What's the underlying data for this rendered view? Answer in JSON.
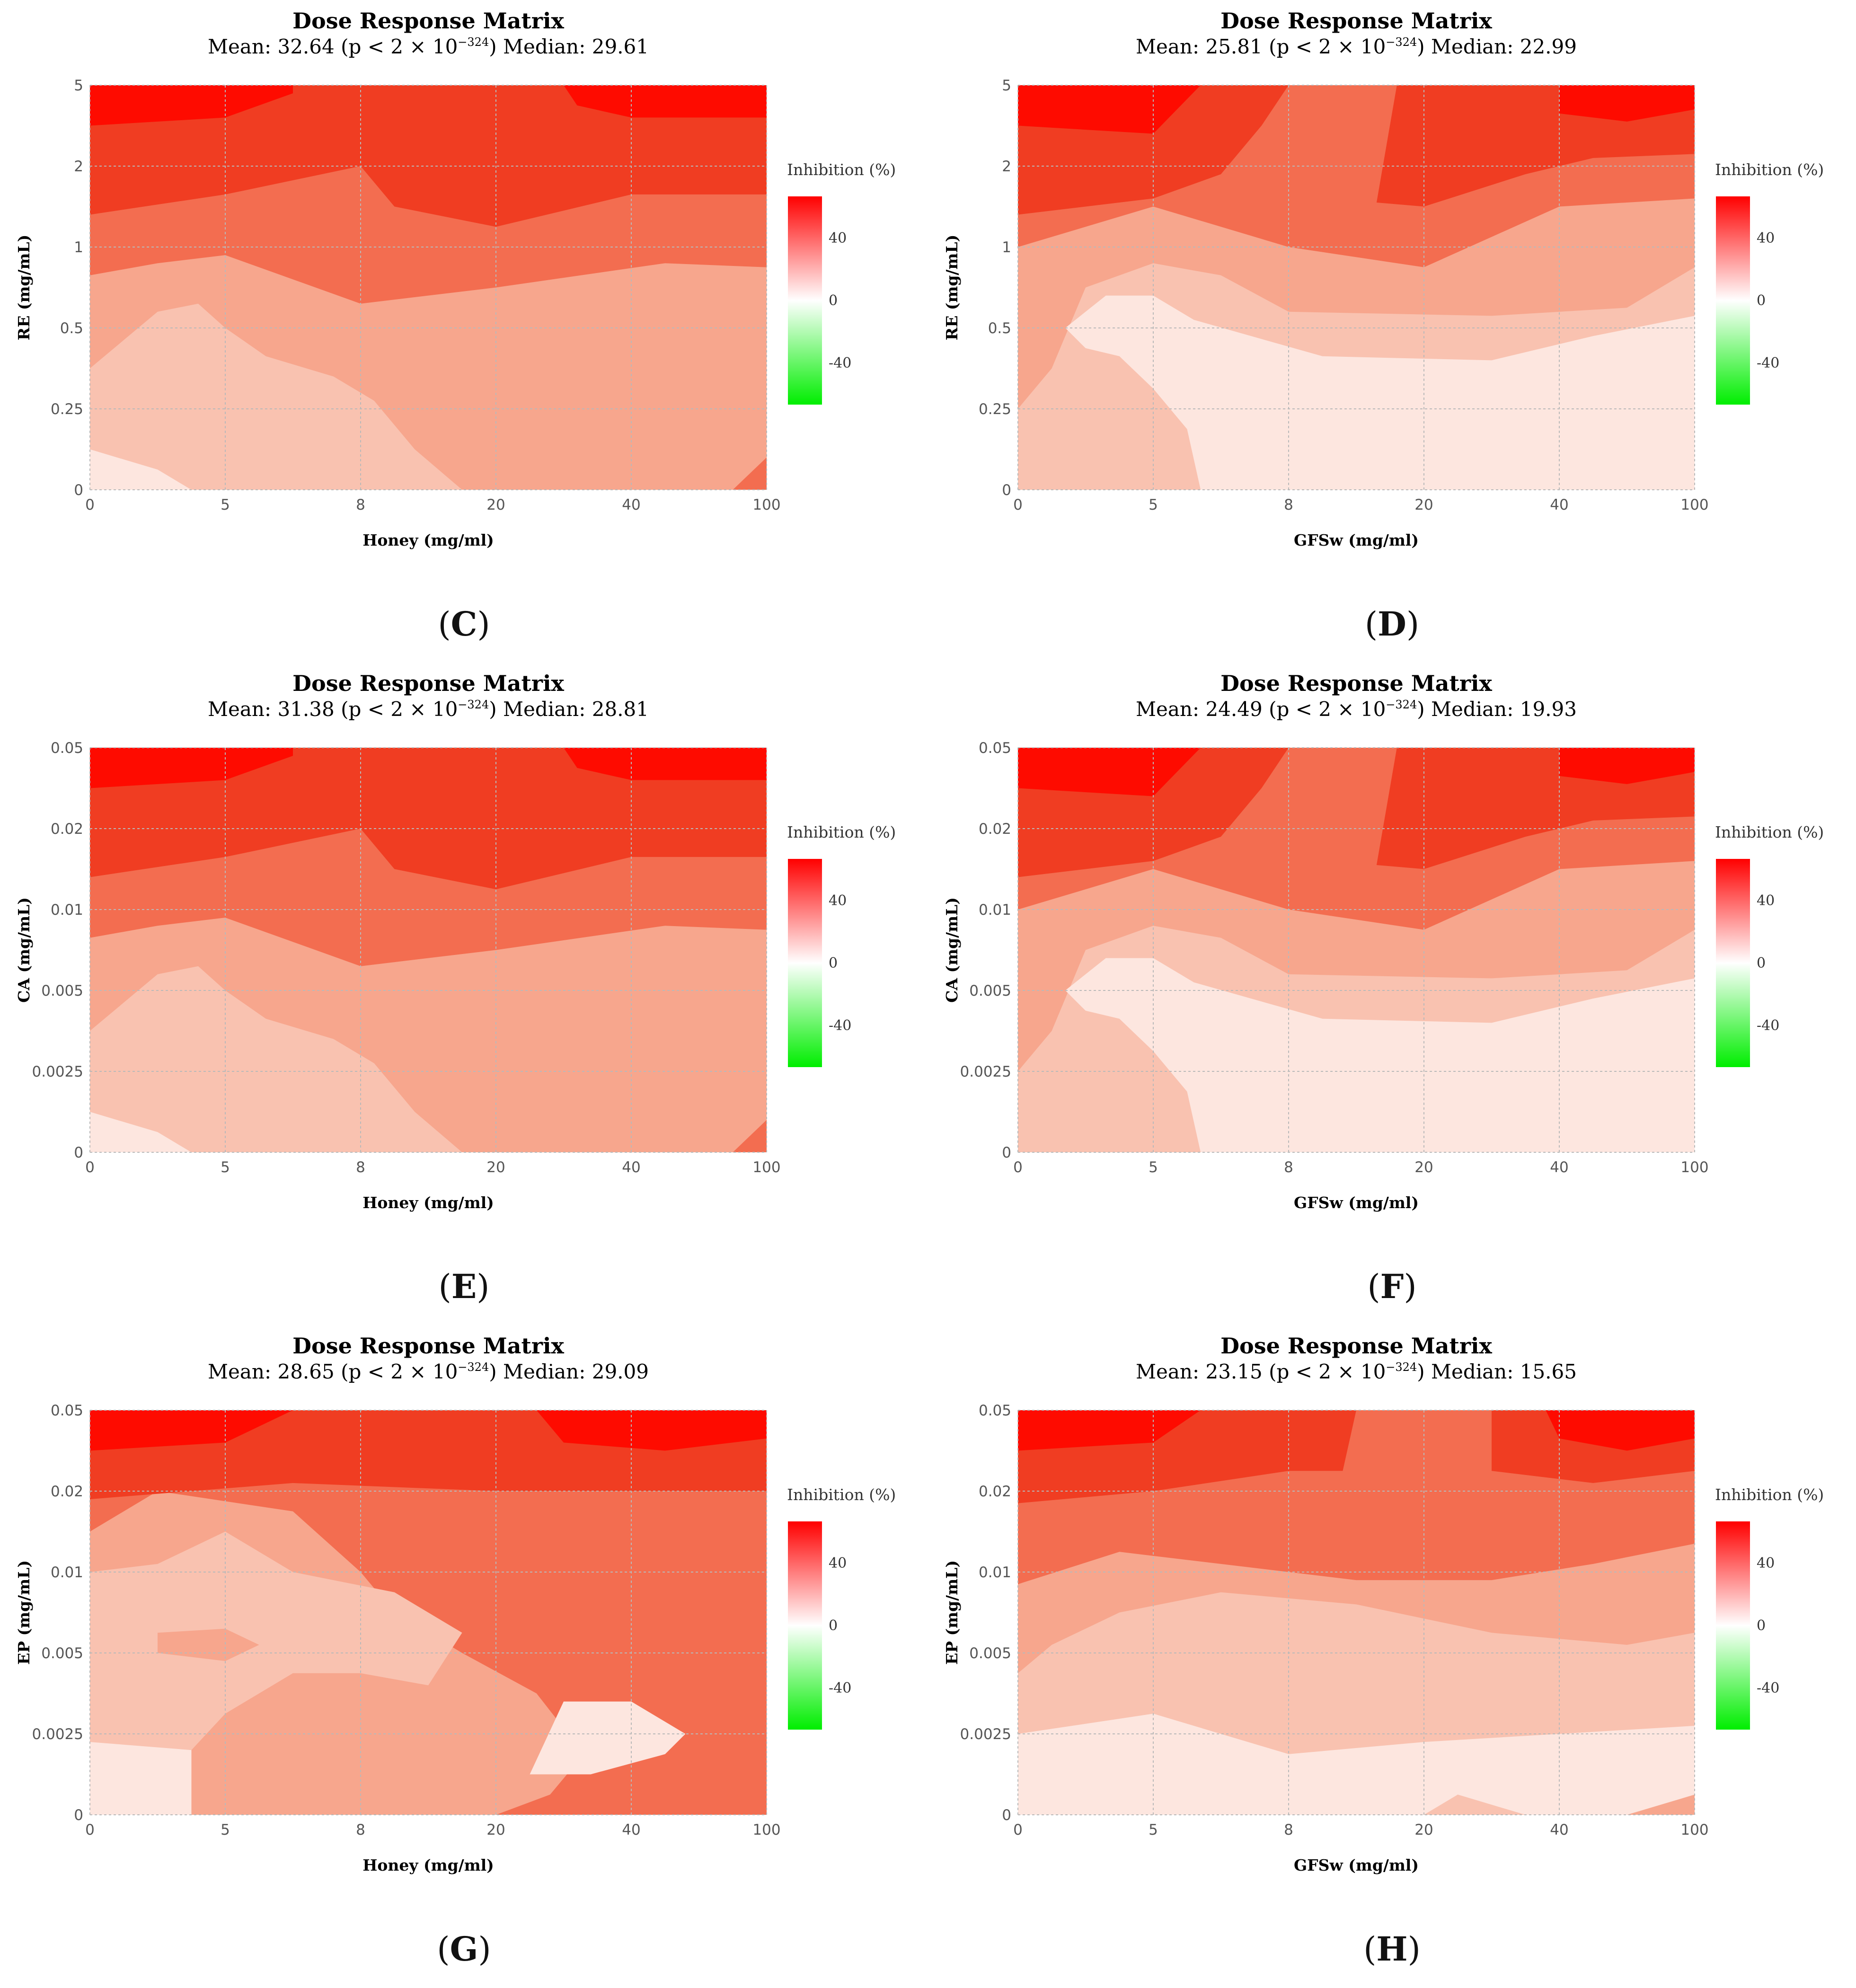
{
  "panels": [
    {
      "letter": "C",
      "title": "Dose Response Matrix",
      "mean": "32.64",
      "median": "29.61",
      "ylabel": "RE (mg/mL)",
      "xlabel": "Honey (mg/ml)",
      "yticks": [
        "0",
        "0.25",
        "0.5",
        "1",
        "2",
        "5"
      ],
      "xticks": [
        "0",
        "5",
        "8",
        "20",
        "40",
        "100"
      ],
      "legend_title": "Inhibition (%)",
      "legend_ticks": [
        "40",
        "0",
        "-40"
      ],
      "pattern": "C"
    },
    {
      "letter": "D",
      "title": "Dose Response Matrix",
      "mean": "25.81",
      "median": "22.99",
      "ylabel": "RE (mg/mL)",
      "xlabel": "GFSw (mg/ml)",
      "yticks": [
        "0",
        "0.25",
        "0.5",
        "1",
        "2",
        "5"
      ],
      "xticks": [
        "0",
        "5",
        "8",
        "20",
        "40",
        "100"
      ],
      "legend_title": "Inhibition (%)",
      "legend_ticks": [
        "40",
        "0",
        "-40"
      ],
      "pattern": "D"
    },
    {
      "letter": "E",
      "title": "Dose Response Matrix",
      "mean": "31.38",
      "median": "28.81",
      "ylabel": "CA (mg/mL)",
      "xlabel": "Honey (mg/ml)",
      "yticks": [
        "0",
        "0.0025",
        "0.005",
        "0.01",
        "0.02",
        "0.05"
      ],
      "xticks": [
        "0",
        "5",
        "8",
        "20",
        "40",
        "100"
      ],
      "legend_title": "Inhibition (%)",
      "legend_ticks": [
        "40",
        "0",
        "-40"
      ],
      "pattern": "C"
    },
    {
      "letter": "F",
      "title": "Dose Response Matrix",
      "mean": "24.49",
      "median": "19.93",
      "ylabel": "CA (mg/mL)",
      "xlabel": "GFSw (mg/ml)",
      "yticks": [
        "0",
        "0.0025",
        "0.005",
        "0.01",
        "0.02",
        "0.05"
      ],
      "xticks": [
        "0",
        "5",
        "8",
        "20",
        "40",
        "100"
      ],
      "legend_title": "Inhibition (%)",
      "legend_ticks": [
        "40",
        "0",
        "-40"
      ],
      "pattern": "D"
    },
    {
      "letter": "G",
      "title": "Dose Response Matrix",
      "mean": "28.65",
      "median": "29.09",
      "ylabel": "EP (mg/mL)",
      "xlabel": "Honey (mg/ml)",
      "yticks": [
        "0",
        "0.0025",
        "0.005",
        "0.01",
        "0.02",
        "0.05"
      ],
      "xticks": [
        "0",
        "5",
        "8",
        "20",
        "40",
        "100"
      ],
      "legend_title": "Inhibition (%)",
      "legend_ticks": [
        "40",
        "0",
        "-40"
      ],
      "pattern": "G"
    },
    {
      "letter": "H",
      "title": "Dose Response Matrix",
      "mean": "23.15",
      "median": "15.65",
      "ylabel": "EP (mg/mL)",
      "xlabel": "GFSw (mg/ml)",
      "yticks": [
        "0",
        "0.0025",
        "0.005",
        "0.01",
        "0.02",
        "0.05"
      ],
      "xticks": [
        "0",
        "5",
        "8",
        "20",
        "40",
        "100"
      ],
      "legend_title": "Inhibition (%)",
      "legend_ticks": [
        "40",
        "0",
        "-40"
      ],
      "pattern": "H"
    }
  ],
  "p_text": {
    "prefix": "(p < 2 × 10",
    "exponent": "−324",
    "suffix": ")"
  },
  "labels": {
    "mean": "Mean: ",
    "median": "Median: "
  },
  "colors": {
    "level0": "#fde6df",
    "level1": "#f9c2b0",
    "level2": "#f7a68d",
    "level3": "#f36d50",
    "level4": "#f03d22",
    "level5": "#fe0b00",
    "legend_high": "#ff0000",
    "legend_mid": "#ffffff",
    "legend_low": "#00ee00",
    "grid": "#b9b9b9"
  },
  "chart_data": [
    {
      "type": "heatmap",
      "title": "Dose Response Matrix",
      "subtitle": "Mean: 32.64 (p < 2 × 10−324) Median: 29.61",
      "x_categories": [
        "0",
        "5",
        "8",
        "20",
        "40",
        "100"
      ],
      "y_categories": [
        "0",
        "0.25",
        "0.5",
        "1",
        "2",
        "5"
      ],
      "xlabel": "Honey (mg/ml)",
      "ylabel": "RE (mg/mL)",
      "colorbar": {
        "label": "Inhibition (%)",
        "ticks": [
          40,
          0,
          -40
        ]
      }
    },
    {
      "type": "heatmap",
      "title": "Dose Response Matrix",
      "subtitle": "Mean: 25.81 (p < 2 × 10−324) Median: 22.99",
      "x_categories": [
        "0",
        "5",
        "8",
        "20",
        "40",
        "100"
      ],
      "y_categories": [
        "0",
        "0.25",
        "0.5",
        "1",
        "2",
        "5"
      ],
      "xlabel": "GFSw (mg/ml)",
      "ylabel": "RE (mg/mL)",
      "colorbar": {
        "label": "Inhibition (%)",
        "ticks": [
          40,
          0,
          -40
        ]
      }
    },
    {
      "type": "heatmap",
      "title": "Dose Response Matrix",
      "subtitle": "Mean: 31.38 (p < 2 × 10−324) Median: 28.81",
      "x_categories": [
        "0",
        "5",
        "8",
        "20",
        "40",
        "100"
      ],
      "y_categories": [
        "0",
        "0.0025",
        "0.005",
        "0.01",
        "0.02",
        "0.05"
      ],
      "xlabel": "Honey (mg/ml)",
      "ylabel": "CA (mg/mL)",
      "colorbar": {
        "label": "Inhibition (%)",
        "ticks": [
          40,
          0,
          -40
        ]
      }
    },
    {
      "type": "heatmap",
      "title": "Dose Response Matrix",
      "subtitle": "Mean: 24.49 (p < 2 × 10−324) Median: 19.93",
      "x_categories": [
        "0",
        "5",
        "8",
        "20",
        "40",
        "100"
      ],
      "y_categories": [
        "0",
        "0.0025",
        "0.005",
        "0.01",
        "0.02",
        "0.05"
      ],
      "xlabel": "GFSw (mg/ml)",
      "ylabel": "CA (mg/mL)",
      "colorbar": {
        "label": "Inhibition (%)",
        "ticks": [
          40,
          0,
          -40
        ]
      }
    },
    {
      "type": "heatmap",
      "title": "Dose Response Matrix",
      "subtitle": "Mean: 28.65 (p < 2 × 10−324) Median: 29.09",
      "x_categories": [
        "0",
        "5",
        "8",
        "20",
        "40",
        "100"
      ],
      "y_categories": [
        "0",
        "0.0025",
        "0.005",
        "0.01",
        "0.02",
        "0.05"
      ],
      "xlabel": "Honey (mg/ml)",
      "ylabel": "EP (mg/mL)",
      "colorbar": {
        "label": "Inhibition (%)",
        "ticks": [
          40,
          0,
          -40
        ]
      }
    },
    {
      "type": "heatmap",
      "title": "Dose Response Matrix",
      "subtitle": "Mean: 23.15 (p < 2 × 10−324) Median: 15.65",
      "x_categories": [
        "0",
        "5",
        "8",
        "20",
        "40",
        "100"
      ],
      "y_categories": [
        "0",
        "0.0025",
        "0.005",
        "0.01",
        "0.02",
        "0.05"
      ],
      "xlabel": "GFSw (mg/ml)",
      "ylabel": "EP (mg/mL)",
      "colorbar": {
        "label": "Inhibition (%)",
        "ticks": [
          40,
          0,
          -40
        ]
      }
    }
  ]
}
